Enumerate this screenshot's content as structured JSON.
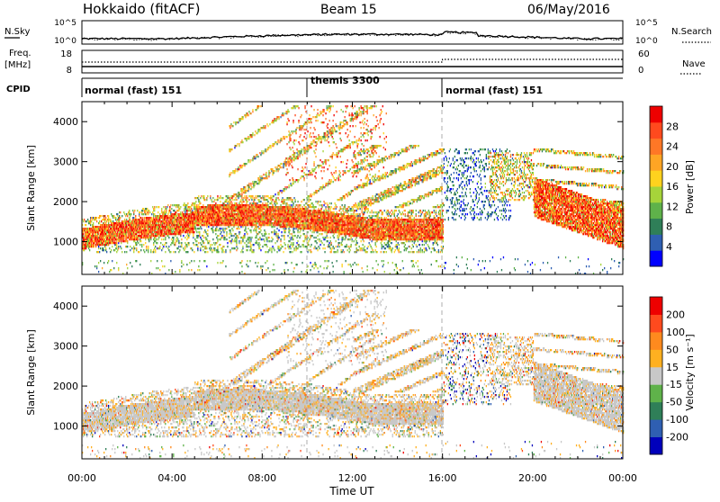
{
  "header": {
    "station": "Hokkaido (fitACF)",
    "beam": "Beam 15",
    "date": "06/May/2016"
  },
  "top_strip": {
    "left_label": "N.Sky",
    "left_ticks": [
      "10^5",
      "10^0"
    ],
    "right_ticks": [
      "10^5",
      "10^0"
    ],
    "right_label": "N.Search"
  },
  "freq_strip": {
    "left_label_1": "Freq.",
    "left_label_2": "[MHz]",
    "left_ticks": [
      "18",
      "8"
    ],
    "right_ticks": [
      "60",
      "0"
    ],
    "right_label": "Nave"
  },
  "cpid": {
    "label": "CPID",
    "segments": [
      {
        "start_h": 0,
        "end_h": 10,
        "text": "normal (fast) 151"
      },
      {
        "start_h": 10,
        "end_h": 16,
        "text": "themis 3300"
      },
      {
        "start_h": 16,
        "end_h": 24,
        "text": "normal (fast) 151"
      }
    ]
  },
  "chart_data": [
    {
      "type": "heatmap",
      "panel": "power",
      "ylabel": "Slant Range [km]",
      "yticks": [
        "4000",
        "3000",
        "2000",
        "1000"
      ],
      "ylim": [
        180,
        4500
      ],
      "colorbar_label": "Power [dB]",
      "colorbar_ticks": [
        "28",
        "24",
        "20",
        "16",
        "12",
        "8",
        "4"
      ],
      "colorbar_colors": [
        "#0000ff",
        "#2f5fb2",
        "#2f7f58",
        "#5fb24a",
        "#a6d43a",
        "#ffd21e",
        "#ffa524",
        "#ff7726",
        "#ff4a1e",
        "#ee0000"
      ]
    },
    {
      "type": "heatmap",
      "panel": "velocity",
      "ylabel": "Slant Range [km]",
      "yticks": [
        "4000",
        "3000",
        "2000",
        "1000"
      ],
      "ylim": [
        180,
        4500
      ],
      "colorbar_label": "Velocity [m s⁻¹]",
      "colorbar_ticks": [
        "200",
        "100",
        "50",
        "15",
        "-15",
        "-50",
        "-100",
        "-200"
      ],
      "colorbar_colors": [
        "#0000bb",
        "#2f5fb2",
        "#2f7f58",
        "#5fb24a",
        "#c8c8c8",
        "#ffb020",
        "#ff8a1e",
        "#ff4a1e",
        "#ee0000"
      ]
    }
  ],
  "x_axis": {
    "ticks": [
      "00:00",
      "04:00",
      "08:00",
      "12:00",
      "16:00",
      "20:00",
      "00:00"
    ],
    "label": "Time UT",
    "range_h": [
      0,
      24
    ]
  }
}
